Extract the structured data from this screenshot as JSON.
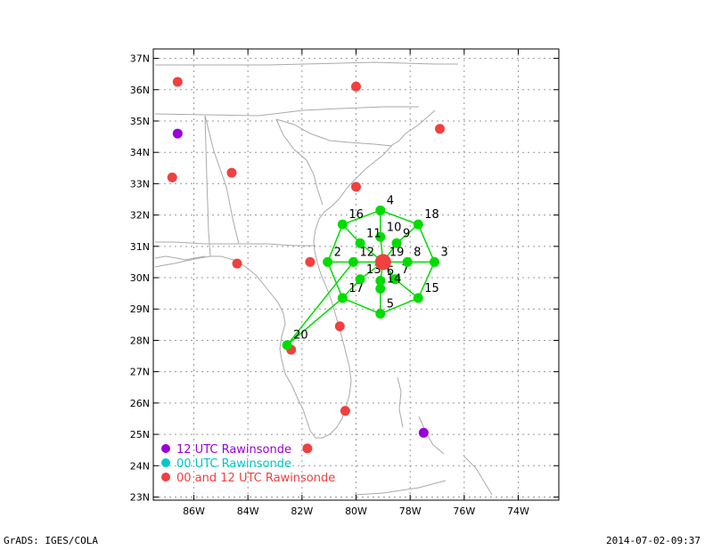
{
  "axes": {
    "lat_ticks": [
      "23N",
      "24N",
      "25N",
      "26N",
      "27N",
      "28N",
      "29N",
      "30N",
      "31N",
      "32N",
      "33N",
      "34N",
      "35N",
      "36N",
      "37N"
    ],
    "lon_ticks": [
      "86W",
      "84W",
      "82W",
      "80W",
      "78W",
      "76W",
      "74W"
    ],
    "lat_values": [
      23,
      24,
      25,
      26,
      27,
      28,
      29,
      30,
      31,
      32,
      33,
      34,
      35,
      36,
      37
    ],
    "lon_values": [
      -86,
      -84,
      -82,
      -80,
      -78,
      -76,
      -74
    ],
    "lon_range": [
      -87.5,
      -72.5
    ],
    "lat_range": [
      22.9,
      37.3
    ]
  },
  "colors": {
    "rawinsonde12": "#9a00d8",
    "rawinsonde00": "#00c8c8",
    "rawinsonde0012": "#f04040",
    "dropsonde": "#00dc00",
    "coast": "#aaaaaa",
    "grid": "#999999"
  },
  "legend": [
    {
      "label": "12 UTC Rawinsonde",
      "color": "#9a00d8"
    },
    {
      "label": "00 UTC Rawinsonde",
      "color": "#00c8c8"
    },
    {
      "label": "00 and 12 UTC Rawinsonde",
      "color": "#f04040"
    }
  ],
  "rawinsondes_12utc": [
    {
      "lon": -86.6,
      "lat": 34.6
    },
    {
      "lon": -77.5,
      "lat": 25.05
    }
  ],
  "rawinsondes_0012utc": [
    {
      "lon": -86.6,
      "lat": 36.25
    },
    {
      "lon": -80.0,
      "lat": 36.1
    },
    {
      "lon": -76.9,
      "lat": 34.75
    },
    {
      "lon": -86.8,
      "lat": 33.2
    },
    {
      "lon": -84.6,
      "lat": 33.35
    },
    {
      "lon": -80.0,
      "lat": 32.9
    },
    {
      "lon": -84.4,
      "lat": 30.45
    },
    {
      "lon": -81.7,
      "lat": 30.5
    },
    {
      "lon": -80.6,
      "lat": 28.45
    },
    {
      "lon": -82.4,
      "lat": 27.7
    },
    {
      "lon": -80.4,
      "lat": 25.75
    },
    {
      "lon": -81.8,
      "lat": 24.55
    }
  ],
  "storm_center": {
    "lon": -79.0,
    "lat": 30.5
  },
  "dropsondes": [
    {
      "id": "2",
      "lon": -81.05,
      "lat": 30.5
    },
    {
      "id": "3",
      "lon": -77.1,
      "lat": 30.5
    },
    {
      "id": "4",
      "lon": -79.1,
      "lat": 32.15
    },
    {
      "id": "5",
      "lon": -79.1,
      "lat": 28.85
    },
    {
      "id": "6",
      "lon": -79.1,
      "lat": 29.9
    },
    {
      "id": "7",
      "lon": -78.55,
      "lat": 29.95
    },
    {
      "id": "8",
      "lon": -78.1,
      "lat": 30.5
    },
    {
      "id": "9",
      "lon": -78.5,
      "lat": 31.1
    },
    {
      "id": "10",
      "lon": -79.1,
      "lat": 31.3
    },
    {
      "id": "11",
      "lon": -79.85,
      "lat": 31.1
    },
    {
      "id": "12",
      "lon": -80.1,
      "lat": 30.5
    },
    {
      "id": "14",
      "lon": -79.1,
      "lat": 29.65
    },
    {
      "id": "15",
      "lon": -77.7,
      "lat": 29.35
    },
    {
      "id": "16",
      "lon": -80.5,
      "lat": 31.7
    },
    {
      "id": "17",
      "lon": -80.5,
      "lat": 29.35
    },
    {
      "id": "18",
      "lon": -77.7,
      "lat": 31.7
    },
    {
      "id": "19",
      "lon": -79.0,
      "lat": 30.5
    },
    {
      "id": "20",
      "lon": -82.55,
      "lat": 27.85
    },
    {
      "id": "13",
      "lon": -79.85,
      "lat": 29.95
    }
  ],
  "flight_track": [
    [
      "2",
      "12"
    ],
    [
      "12",
      "19"
    ],
    [
      "19",
      "8"
    ],
    [
      "8",
      "3"
    ],
    [
      "4",
      "10"
    ],
    [
      "10",
      "19"
    ],
    [
      "19",
      "6"
    ],
    [
      "6",
      "14"
    ],
    [
      "14",
      "5"
    ],
    [
      "16",
      "11"
    ],
    [
      "11",
      "19"
    ],
    [
      "19",
      "7"
    ],
    [
      "7",
      "15"
    ],
    [
      "18",
      "9"
    ],
    [
      "9",
      "19"
    ],
    [
      "19",
      "13"
    ],
    [
      "13",
      "17"
    ],
    [
      "4",
      "16"
    ],
    [
      "16",
      "2"
    ],
    [
      "2",
      "17"
    ],
    [
      "17",
      "5"
    ],
    [
      "5",
      "15"
    ],
    [
      "15",
      "3"
    ],
    [
      "3",
      "18"
    ],
    [
      "18",
      "4"
    ],
    [
      "17",
      "20"
    ],
    [
      "20",
      "12"
    ]
  ],
  "footer": {
    "left": "GrADS: IGES/COLA",
    "right": "2014-07-02-09:37"
  }
}
